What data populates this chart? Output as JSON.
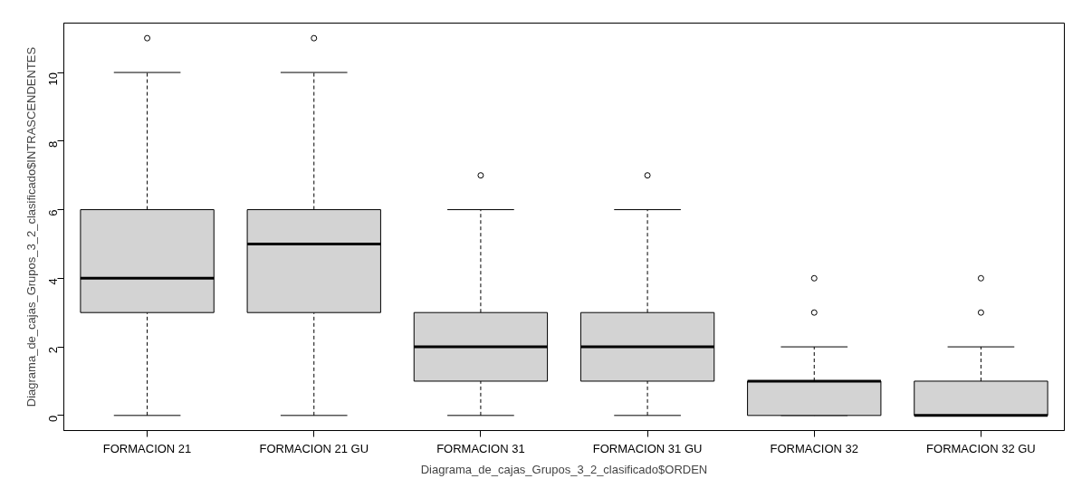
{
  "chart_data": {
    "type": "box",
    "xlabel": "Diagrama_de_cajas_Grupos_3_2_clasificado$ORDEN",
    "ylabel": "Diagrama_de_cajas_Grupos_3_2_clasificado$INTRASCENDENTES",
    "categories": [
      "FORMACION 21",
      "FORMACION 21 GU",
      "FORMACION 31",
      "FORMACION 31 GU",
      "FORMACION 32",
      "FORMACION 32 GU"
    ],
    "ylim": [
      -0.44,
      11.44
    ],
    "yticks": [
      0,
      2,
      4,
      6,
      8,
      10
    ],
    "grid": false,
    "series": [
      {
        "color": "#d3d3d3",
        "boxes": [
          {
            "low": 0,
            "q1": 3,
            "median": 4,
            "q3": 6,
            "high": 10,
            "outliers": [
              11
            ]
          },
          {
            "low": 0,
            "q1": 3,
            "median": 5,
            "q3": 6,
            "high": 10,
            "outliers": [
              11
            ]
          },
          {
            "low": 0,
            "q1": 1,
            "median": 2,
            "q3": 3,
            "high": 6,
            "outliers": [
              7
            ]
          },
          {
            "low": 0,
            "q1": 1,
            "median": 2,
            "q3": 3,
            "high": 6,
            "outliers": [
              7
            ]
          },
          {
            "low": 0,
            "q1": 0,
            "median": 1,
            "q3": 1,
            "high": 2,
            "outliers": [
              3,
              4
            ]
          },
          {
            "low": 0,
            "q1": 0,
            "median": 0,
            "q3": 1,
            "high": 2,
            "outliers": [
              3,
              4
            ]
          }
        ]
      }
    ]
  }
}
